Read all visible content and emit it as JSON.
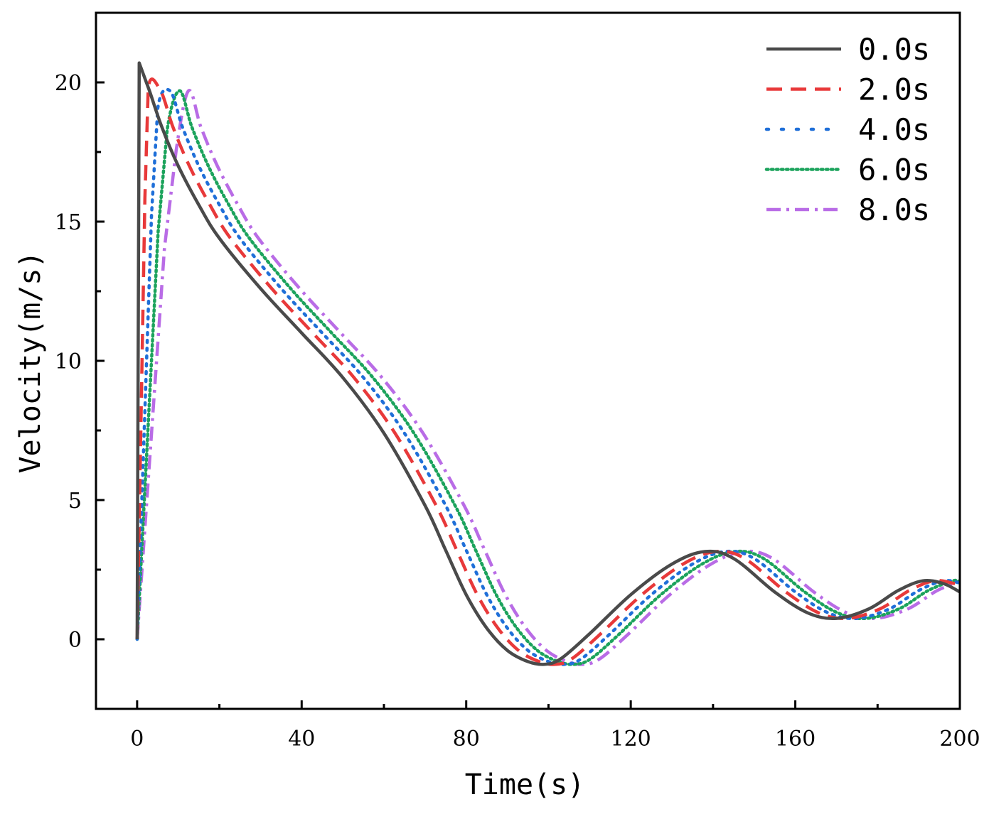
{
  "chart_data": {
    "type": "line",
    "title": "",
    "xlabel": "Time(s)",
    "ylabel": "Velocity(m/s)",
    "xlim": [
      -10,
      200
    ],
    "ylim": [
      -2.5,
      22.5
    ],
    "xticks": [
      0,
      40,
      80,
      120,
      160,
      200
    ],
    "xtick_labels": [
      "0",
      "40",
      "80",
      "120",
      "160",
      "200"
    ],
    "yticks": [
      0,
      5,
      10,
      15,
      20
    ],
    "ytick_labels": [
      "0",
      "5",
      "10",
      "15",
      "20"
    ],
    "legend_position": "top-right",
    "grid": false,
    "series": [
      {
        "name": "0.0s",
        "delay": 0,
        "color": "#4a4a4a",
        "dash": "solid",
        "peak": [
          0.5,
          20.7
        ],
        "base": [
          [
            0.5,
            20.7
          ],
          [
            3,
            19.7
          ],
          [
            6,
            18.4
          ],
          [
            10,
            17.0
          ],
          [
            15,
            15.6
          ],
          [
            20,
            14.4
          ],
          [
            30,
            12.6
          ],
          [
            40,
            11.0
          ],
          [
            50,
            9.4
          ],
          [
            60,
            7.4
          ],
          [
            70,
            4.8
          ],
          [
            75,
            3.2
          ],
          [
            80,
            1.6
          ],
          [
            85,
            0.4
          ],
          [
            90,
            -0.4
          ],
          [
            95,
            -0.8
          ],
          [
            99,
            -0.9
          ],
          [
            103,
            -0.7
          ],
          [
            110,
            0.2
          ],
          [
            120,
            1.6
          ],
          [
            130,
            2.7
          ],
          [
            138,
            3.15
          ],
          [
            145,
            2.9
          ],
          [
            155,
            1.7
          ],
          [
            163,
            0.95
          ],
          [
            170,
            0.75
          ],
          [
            178,
            1.1
          ],
          [
            185,
            1.75
          ],
          [
            191,
            2.1
          ],
          [
            196,
            2.0
          ],
          [
            200,
            1.7
          ]
        ]
      },
      {
        "name": "2.0s",
        "delay": 2.7,
        "color": "#e8393a",
        "dash": "dash"
      },
      {
        "name": "4.0s",
        "delay": 5.0,
        "color": "#1f6fd8",
        "dash": "dot"
      },
      {
        "name": "6.0s",
        "delay": 7.3,
        "color": "#1ca35c",
        "dash": "dot-fine"
      },
      {
        "name": "8.0s",
        "delay": 9.5,
        "color": "#b96ce6",
        "dash": "dashdot"
      }
    ]
  }
}
